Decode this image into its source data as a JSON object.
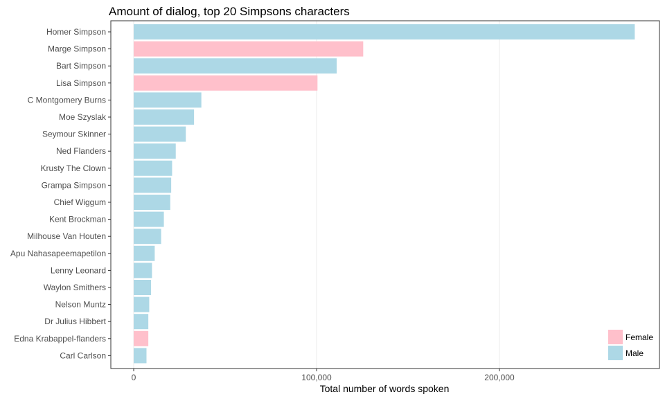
{
  "chart_data": {
    "type": "bar",
    "orientation": "horizontal",
    "title": "Amount of dialog, top 20 Simpsons characters",
    "xlabel": "Total number of words spoken",
    "ylabel": "",
    "xlim": [
      0,
      285000
    ],
    "x_ticks": [
      {
        "value": 0,
        "label": "0"
      },
      {
        "value": 100000,
        "label": "100,000"
      },
      {
        "value": 200000,
        "label": "200,000"
      }
    ],
    "grid": "vertical major lines",
    "legend": {
      "placement": "bottom-right",
      "entries": [
        {
          "label": "Female",
          "color": "#FFC0CB"
        },
        {
          "label": "Male",
          "color": "#ADD8E6"
        }
      ]
    },
    "bars": [
      {
        "name": "Homer Simpson",
        "value": 274000,
        "gender": "Male"
      },
      {
        "name": "Marge Simpson",
        "value": 125500,
        "gender": "Female"
      },
      {
        "name": "Bart Simpson",
        "value": 111000,
        "gender": "Male"
      },
      {
        "name": "Lisa Simpson",
        "value": 100500,
        "gender": "Female"
      },
      {
        "name": "C Montgomery Burns",
        "value": 37000,
        "gender": "Male"
      },
      {
        "name": "Moe Szyslak",
        "value": 33000,
        "gender": "Male"
      },
      {
        "name": "Seymour Skinner",
        "value": 28500,
        "gender": "Male"
      },
      {
        "name": "Ned Flanders",
        "value": 23000,
        "gender": "Male"
      },
      {
        "name": "Krusty The Clown",
        "value": 21000,
        "gender": "Male"
      },
      {
        "name": "Grampa Simpson",
        "value": 20500,
        "gender": "Male"
      },
      {
        "name": "Chief Wiggum",
        "value": 20000,
        "gender": "Male"
      },
      {
        "name": "Kent Brockman",
        "value": 16500,
        "gender": "Male"
      },
      {
        "name": "Milhouse Van Houten",
        "value": 15000,
        "gender": "Male"
      },
      {
        "name": "Apu Nahasapeemapetilon",
        "value": 11500,
        "gender": "Male"
      },
      {
        "name": "Lenny Leonard",
        "value": 10000,
        "gender": "Male"
      },
      {
        "name": "Waylon Smithers",
        "value": 9500,
        "gender": "Male"
      },
      {
        "name": "Nelson Muntz",
        "value": 8500,
        "gender": "Male"
      },
      {
        "name": "Dr Julius Hibbert",
        "value": 8000,
        "gender": "Male"
      },
      {
        "name": "Edna Krabappel-flanders",
        "value": 8000,
        "gender": "Female"
      },
      {
        "name": "Carl Carlson",
        "value": 7000,
        "gender": "Male"
      }
    ],
    "colors": {
      "Female": "#FFC0CB",
      "Male": "#ADD8E6",
      "grid": "#EBEBEB",
      "frame": "#333333"
    }
  }
}
